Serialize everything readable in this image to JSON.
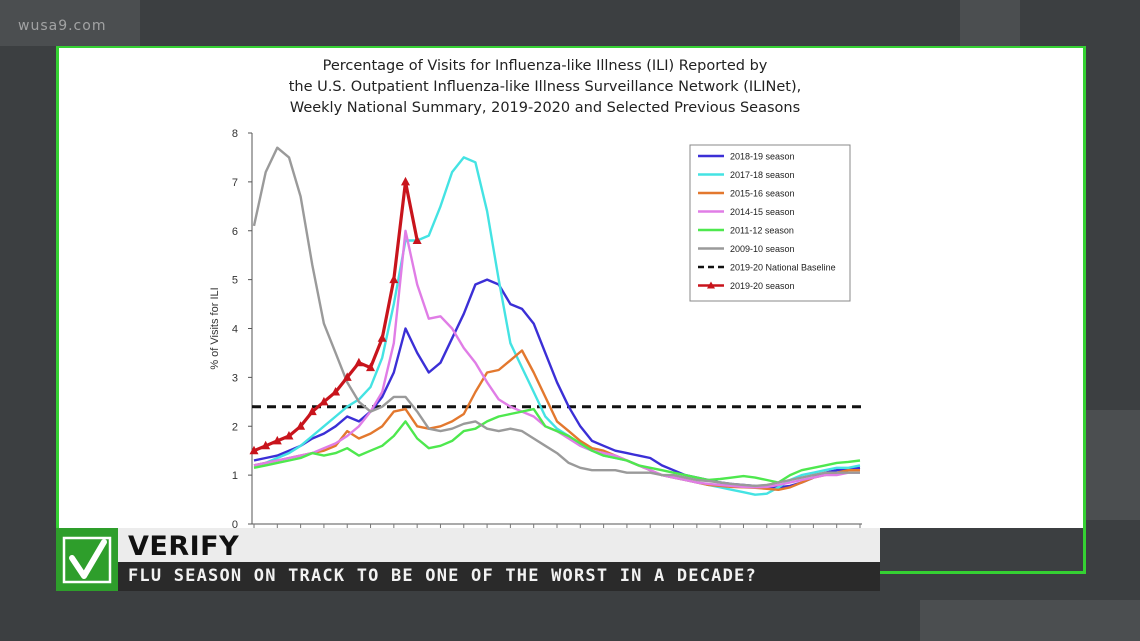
{
  "watermark": "wusa9.com",
  "lower_third": {
    "label": "VERIFY",
    "headline": "FLU SEASON ON TRACK TO BE ONE OF THE WORST IN A DECADE?"
  },
  "chart_data": {
    "type": "line",
    "title_lines": [
      "Percentage of Visits for Influenza-like Illness (ILI) Reported by",
      "the U.S. Outpatient Influenza-like Illness Surveillance Network (ILINet),",
      "Weekly National Summary, 2019-2020 and Selected Previous Seasons"
    ],
    "ylabel": "% of Visits for ILI",
    "xlabel": "",
    "ylim": [
      0,
      8
    ],
    "yticks": [
      0,
      1,
      2,
      3,
      4,
      5,
      6,
      7,
      8
    ],
    "x_weeks": 53,
    "legend_position": "top-right",
    "baseline": {
      "name": "2019-20 National Baseline",
      "value": 2.4,
      "color": "#111111"
    },
    "series": [
      {
        "name": "2018-19 season",
        "color": "#3b2fd6",
        "values": [
          1.3,
          1.35,
          1.4,
          1.5,
          1.6,
          1.75,
          1.85,
          2.0,
          2.2,
          2.1,
          2.3,
          2.6,
          3.1,
          4.0,
          3.5,
          3.1,
          3.3,
          3.8,
          4.3,
          4.9,
          5.0,
          4.9,
          4.5,
          4.4,
          4.1,
          3.5,
          2.9,
          2.4,
          2.0,
          1.7,
          1.6,
          1.5,
          1.45,
          1.4,
          1.35,
          1.2,
          1.1,
          1.0,
          0.95,
          0.9,
          0.85,
          0.82,
          0.8,
          0.78,
          0.76,
          0.75,
          0.78,
          0.85,
          0.95,
          1.05,
          1.1,
          1.12,
          1.15
        ]
      },
      {
        "name": "2017-18 season",
        "color": "#44e3e3",
        "values": [
          1.2,
          1.25,
          1.35,
          1.45,
          1.6,
          1.8,
          2.0,
          2.2,
          2.4,
          2.55,
          2.8,
          3.4,
          4.5,
          5.8,
          5.8,
          5.9,
          6.5,
          7.2,
          7.5,
          7.4,
          6.4,
          5.0,
          3.7,
          3.2,
          2.7,
          2.2,
          1.95,
          1.8,
          1.6,
          1.5,
          1.4,
          1.35,
          1.3,
          1.2,
          1.1,
          1.0,
          0.95,
          0.9,
          0.85,
          0.8,
          0.75,
          0.7,
          0.65,
          0.6,
          0.62,
          0.75,
          0.9,
          1.0,
          1.05,
          1.1,
          1.15,
          1.15,
          1.2
        ]
      },
      {
        "name": "2015-16 season",
        "color": "#e3782e",
        "values": [
          1.2,
          1.25,
          1.3,
          1.35,
          1.4,
          1.45,
          1.5,
          1.6,
          1.9,
          1.75,
          1.85,
          2.0,
          2.3,
          2.35,
          2.0,
          1.95,
          2.0,
          2.1,
          2.25,
          2.7,
          3.1,
          3.15,
          3.35,
          3.55,
          3.1,
          2.6,
          2.1,
          1.9,
          1.7,
          1.55,
          1.5,
          1.4,
          1.3,
          1.2,
          1.1,
          1.0,
          0.95,
          0.9,
          0.85,
          0.8,
          0.78,
          0.76,
          0.75,
          0.74,
          0.72,
          0.7,
          0.75,
          0.85,
          0.95,
          1.0,
          1.05,
          1.1,
          1.1
        ]
      },
      {
        "name": "2014-15 season",
        "color": "#e07de6",
        "values": [
          1.2,
          1.25,
          1.3,
          1.35,
          1.4,
          1.45,
          1.55,
          1.65,
          1.8,
          2.0,
          2.3,
          2.7,
          3.7,
          6.0,
          4.9,
          4.2,
          4.25,
          4.0,
          3.6,
          3.3,
          2.9,
          2.55,
          2.4,
          2.3,
          2.2,
          2.0,
          1.9,
          1.75,
          1.6,
          1.5,
          1.45,
          1.4,
          1.3,
          1.2,
          1.1,
          1.0,
          0.95,
          0.9,
          0.85,
          0.82,
          0.8,
          0.78,
          0.76,
          0.75,
          0.76,
          0.8,
          0.85,
          0.9,
          0.95,
          1.0,
          1.0,
          1.05,
          1.05
        ]
      },
      {
        "name": "2011-12 season",
        "color": "#4ee84e",
        "values": [
          1.15,
          1.2,
          1.25,
          1.3,
          1.35,
          1.45,
          1.4,
          1.45,
          1.55,
          1.4,
          1.5,
          1.6,
          1.8,
          2.1,
          1.75,
          1.55,
          1.6,
          1.7,
          1.9,
          1.95,
          2.1,
          2.2,
          2.25,
          2.3,
          2.35,
          2.0,
          1.9,
          1.8,
          1.65,
          1.5,
          1.4,
          1.35,
          1.3,
          1.2,
          1.15,
          1.1,
          1.05,
          1.0,
          0.95,
          0.9,
          0.92,
          0.95,
          0.98,
          0.95,
          0.9,
          0.85,
          1.0,
          1.1,
          1.15,
          1.2,
          1.25,
          1.27,
          1.3
        ]
      },
      {
        "name": "2009-10 season",
        "color": "#9a9a9a",
        "values": [
          6.1,
          7.2,
          7.7,
          7.5,
          6.7,
          5.3,
          4.1,
          3.5,
          2.9,
          2.5,
          2.3,
          2.4,
          2.6,
          2.6,
          2.3,
          1.95,
          1.9,
          1.95,
          2.05,
          2.1,
          1.95,
          1.9,
          1.95,
          1.9,
          1.75,
          1.6,
          1.45,
          1.25,
          1.15,
          1.1,
          1.1,
          1.1,
          1.05,
          1.05,
          1.05,
          1.0,
          1.0,
          0.95,
          0.9,
          0.88,
          0.85,
          0.82,
          0.8,
          0.78,
          0.8,
          0.85,
          0.9,
          0.95,
          1.0,
          1.05,
          1.05,
          1.05,
          1.05
        ]
      },
      {
        "name": "2019-20 season",
        "color": "#c8141c",
        "marker": "triangle",
        "values": [
          1.5,
          1.6,
          1.7,
          1.8,
          2.0,
          2.3,
          2.5,
          2.7,
          3.0,
          3.3,
          3.2,
          3.8,
          5.0,
          7.0,
          5.8
        ]
      }
    ]
  }
}
